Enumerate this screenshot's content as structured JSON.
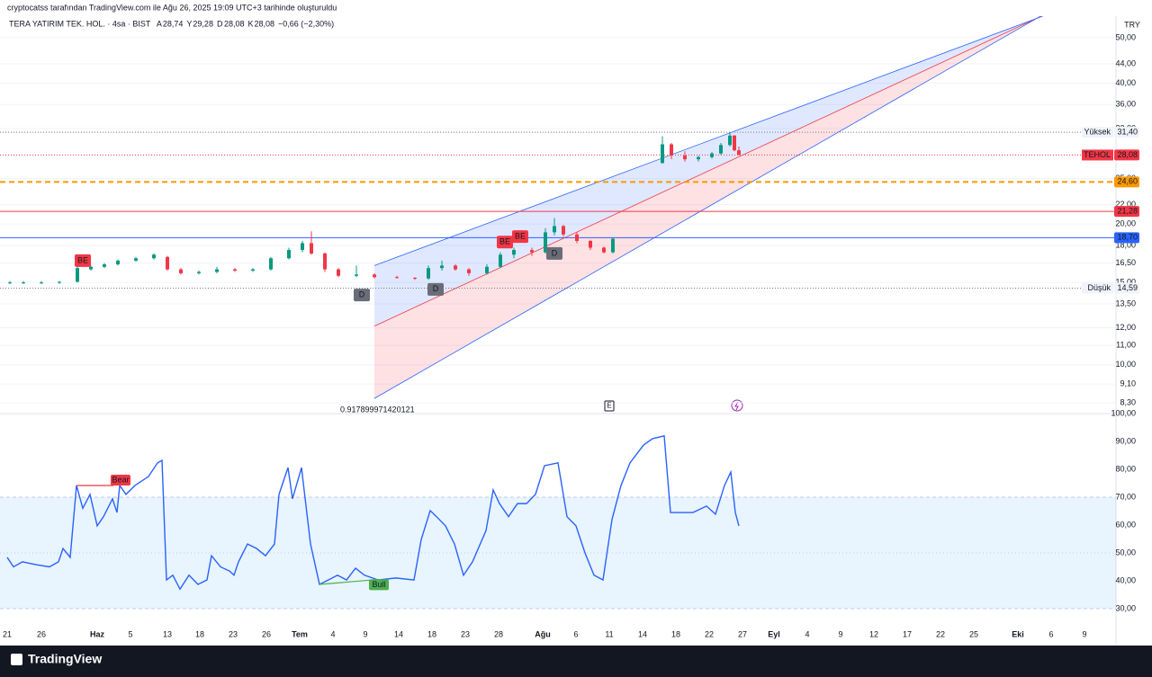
{
  "header": {
    "credit": "cryptocatss tarafından TradingView.com ile Ağu 26, 2025 19:09 UTC+3 tarihinde oluşturuldu",
    "symbol": "TERA YATIRIM TEK. HOL. · 4sa · BIST",
    "ohlc": [
      {
        "key": "A",
        "value": "28,74"
      },
      {
        "key": "Y",
        "value": "29,28"
      },
      {
        "key": "D",
        "value": "28,08"
      },
      {
        "key": "K",
        "value": "28,08"
      }
    ],
    "change": "−0,66 (−2,30%)"
  },
  "currency": "TRY",
  "footer": {
    "brand": "TradingView"
  },
  "chart_data": [
    {
      "type": "candlestick",
      "log_scale": true,
      "up_color": "#089981",
      "down_color": "#f23645",
      "xlim": [
        0,
        248
      ],
      "ylim": [
        7.87,
        55.6
      ],
      "yticks": [
        {
          "value": 50,
          "label": "50,00"
        },
        {
          "value": 44,
          "label": "44,00"
        },
        {
          "value": 40,
          "label": "40,00"
        },
        {
          "value": 36,
          "label": "36,00"
        },
        {
          "value": 32,
          "label": "32,00"
        },
        {
          "value": 25,
          "label": "25,00"
        },
        {
          "value": 22,
          "label": "22,00"
        },
        {
          "value": 20,
          "label": "20,00"
        },
        {
          "value": 18,
          "label": "18,00"
        },
        {
          "value": 16.5,
          "label": "16,50"
        },
        {
          "value": 15,
          "label": "15,00"
        },
        {
          "value": 13.5,
          "label": "13,50"
        },
        {
          "value": 12,
          "label": "12,00"
        },
        {
          "value": 11,
          "label": "11,00"
        },
        {
          "value": 10,
          "label": "10,00"
        },
        {
          "value": 9.1,
          "label": "9,10"
        },
        {
          "value": 8.3,
          "label": "8,30"
        }
      ],
      "x": [
        1,
        4,
        8,
        12,
        16,
        19,
        22,
        25,
        29,
        33,
        36,
        39,
        43,
        47,
        51,
        55,
        59,
        63,
        66,
        68,
        71,
        74,
        78,
        82,
        87,
        91,
        94,
        97,
        100,
        103,
        107,
        110,
        113,
        117,
        120,
        122,
        124,
        127,
        130,
        133,
        135,
        146,
        148,
        151,
        154,
        157,
        159,
        161,
        162,
        163
      ],
      "open": [
        15.0,
        15.0,
        15.0,
        15.0,
        15.05,
        16.0,
        16.2,
        16.4,
        16.7,
        16.9,
        17.0,
        16.0,
        15.7,
        15.8,
        16.0,
        15.9,
        16.0,
        16.9,
        17.6,
        18.2,
        17.3,
        16.0,
        15.5,
        15.6,
        15.4,
        15.35,
        15.3,
        16.1,
        16.3,
        16.0,
        15.7,
        16.2,
        17.2,
        17.6,
        17.4,
        19.2,
        19.8,
        19.0,
        18.4,
        17.8,
        17.4,
        27.0,
        29.6,
        28.0,
        27.5,
        27.8,
        28.3,
        29.5,
        30.9,
        28.74
      ],
      "high": [
        15.1,
        15.1,
        15.1,
        15.1,
        16.2,
        16.3,
        16.5,
        16.8,
        17.0,
        17.3,
        17.1,
        16.1,
        15.9,
        16.2,
        16.1,
        16.1,
        17.0,
        17.8,
        18.4,
        19.3,
        17.4,
        16.1,
        16.3,
        15.7,
        15.5,
        15.4,
        16.3,
        16.7,
        16.4,
        16.1,
        16.4,
        17.4,
        17.8,
        17.8,
        19.6,
        20.6,
        19.9,
        19.2,
        18.5,
        17.9,
        18.7,
        30.8,
        29.8,
        28.6,
        28.0,
        28.5,
        29.8,
        31.4,
        31.0,
        29.28
      ],
      "low": [
        14.9,
        14.9,
        14.9,
        14.9,
        15.0,
        15.9,
        16.1,
        16.3,
        16.6,
        16.8,
        15.9,
        15.6,
        15.6,
        15.7,
        15.8,
        15.8,
        15.9,
        16.8,
        17.4,
        17.2,
        15.8,
        15.4,
        15.4,
        15.3,
        15.3,
        15.2,
        15.2,
        15.9,
        15.9,
        15.5,
        15.6,
        16.1,
        16.9,
        17.1,
        17.3,
        18.9,
        18.8,
        18.2,
        17.6,
        17.3,
        17.3,
        26.9,
        27.5,
        27.2,
        27.2,
        27.6,
        28.1,
        29.3,
        28.6,
        28.08
      ],
      "close": [
        15.0,
        15.0,
        15.0,
        15.05,
        16.1,
        16.2,
        16.4,
        16.7,
        16.9,
        17.2,
        16.0,
        15.7,
        15.8,
        16.0,
        15.9,
        16.0,
        16.9,
        17.6,
        18.2,
        17.3,
        16.0,
        15.5,
        15.6,
        15.4,
        15.35,
        15.3,
        16.1,
        16.3,
        16.0,
        15.7,
        16.2,
        17.2,
        17.6,
        17.4,
        19.2,
        19.8,
        19.0,
        18.4,
        17.8,
        17.4,
        18.6,
        29.6,
        28.0,
        27.5,
        27.8,
        28.3,
        29.5,
        30.9,
        28.74,
        28.08
      ],
      "levels": [
        {
          "name": "Yüksek",
          "value": 31.4,
          "label": "31,40",
          "color": "#787b86",
          "style": "dotted"
        },
        {
          "name": "TEHOL",
          "value": 28.08,
          "label": "28,08",
          "color": "#f23645",
          "style": "dotted"
        },
        {
          "value": 24.6,
          "label": "24,60",
          "color": "#ff9800",
          "style": "dashed"
        },
        {
          "value": 21.28,
          "label": "21,28",
          "color": "#f23645",
          "style": "solid"
        },
        {
          "value": 18.7,
          "label": "18,70",
          "color": "#2962ff",
          "style": "solid"
        },
        {
          "name": "Düşük",
          "value": 14.59,
          "label": "14,59",
          "color": "#787b86",
          "style": "dotted"
        }
      ],
      "channel": {
        "upper": [
          {
            "x": 82,
            "y": 16.3
          },
          {
            "x": 232,
            "y": 56.3
          }
        ],
        "middle": [
          {
            "x": 82,
            "y": 12.1
          },
          {
            "x": 234,
            "y": 57.8
          }
        ],
        "lower": [
          {
            "x": 82,
            "y": 8.48
          },
          {
            "x": 231,
            "y": 56.3
          }
        ],
        "label": "0.917899971420121"
      },
      "markers": [
        {
          "label": "BE",
          "x": 17.2,
          "y": 16.7,
          "color": "#f23645"
        },
        {
          "label": "BE",
          "x": 111,
          "y": 18.3,
          "color": "#f23645"
        },
        {
          "label": "BE",
          "x": 114.4,
          "y": 18.8,
          "color": "#f23645"
        },
        {
          "label": "D",
          "x": 79.2,
          "y": 14.1,
          "color": "#6a6d78"
        },
        {
          "label": "D",
          "x": 95.6,
          "y": 14.5,
          "color": "#6a6d78"
        },
        {
          "label": "D",
          "x": 122,
          "y": 17.3,
          "color": "#6a6d78"
        }
      ],
      "event": {
        "label": "E",
        "x": 134.2
      }
    },
    {
      "type": "line",
      "xlim": [
        0,
        248
      ],
      "ylim": [
        25.8,
        100
      ],
      "band": [
        30,
        70
      ],
      "midline": 50,
      "yticks": [
        {
          "value": 100,
          "label": "100,00"
        },
        {
          "value": 90,
          "label": "90,00"
        },
        {
          "value": 80,
          "label": "80,00"
        },
        {
          "value": 70,
          "label": "70,00"
        },
        {
          "value": 60,
          "label": "60,00"
        },
        {
          "value": 50,
          "label": "50,00"
        },
        {
          "value": 40,
          "label": "40,00"
        },
        {
          "value": 30,
          "label": "30,00"
        }
      ],
      "xticks": [
        {
          "value": 0.4,
          "label": "21"
        },
        {
          "value": 8,
          "label": "26"
        },
        {
          "value": 20.4,
          "label": "Haz"
        },
        {
          "value": 27.8,
          "label": "5"
        },
        {
          "value": 36,
          "label": "13"
        },
        {
          "value": 43.2,
          "label": "18"
        },
        {
          "value": 50.6,
          "label": "23"
        },
        {
          "value": 58,
          "label": "26"
        },
        {
          "value": 65.4,
          "label": "Tem"
        },
        {
          "value": 72.8,
          "label": "4"
        },
        {
          "value": 80,
          "label": "9"
        },
        {
          "value": 87.4,
          "label": "14"
        },
        {
          "value": 94.8,
          "label": "18"
        },
        {
          "value": 102.2,
          "label": "23"
        },
        {
          "value": 109.6,
          "label": "28"
        },
        {
          "value": 119.4,
          "label": "Ağu"
        },
        {
          "value": 126.8,
          "label": "6"
        },
        {
          "value": 134.2,
          "label": "11"
        },
        {
          "value": 141.6,
          "label": "14"
        },
        {
          "value": 149,
          "label": "18"
        },
        {
          "value": 156.4,
          "label": "22"
        },
        {
          "value": 163.8,
          "label": "27"
        },
        {
          "value": 170.8,
          "label": "Eyl"
        },
        {
          "value": 178.2,
          "label": "4"
        },
        {
          "value": 185.6,
          "label": "9"
        },
        {
          "value": 193,
          "label": "12"
        },
        {
          "value": 200.4,
          "label": "17"
        },
        {
          "value": 207.8,
          "label": "22"
        },
        {
          "value": 215.2,
          "label": "25"
        },
        {
          "value": 225,
          "label": "Eki"
        },
        {
          "value": 232.4,
          "label": "6"
        },
        {
          "value": 239.8,
          "label": "9"
        }
      ],
      "x": [
        0.4,
        1.8,
        3.8,
        6.8,
        9.8,
        11.8,
        12.8,
        14.4,
        15.8,
        17.2,
        18.8,
        20.4,
        21.8,
        23.8,
        24.8,
        25.4,
        26.8,
        28.8,
        31.8,
        33.8,
        34.8,
        35.8,
        37.2,
        38.8,
        40.8,
        42.8,
        44.8,
        45.8,
        47.8,
        49.8,
        50.8,
        51.8,
        53.8,
        55.8,
        57.8,
        59.8,
        60.8,
        62.8,
        63.8,
        65.8,
        67.8,
        69.8,
        71.8,
        73.8,
        75.8,
        77.8,
        79.8,
        82.8,
        86.8,
        90.8,
        92.4,
        94.4,
        95.8,
        97.8,
        99.8,
        101.8,
        103.8,
        106.8,
        108.4,
        109.8,
        111.8,
        113.8,
        115.8,
        117.8,
        119.8,
        122.8,
        124.8,
        126.8,
        128.8,
        130.8,
        132.8,
        134.8,
        136.8,
        138.8,
        141.8,
        143.8,
        146.4,
        147.8,
        149.8,
        152.8,
        155.8,
        157.8,
        159.8,
        161.2,
        162.2,
        163
      ],
      "series": [
        {
          "color": "#2962ff",
          "values": [
            48.4,
            45,
            46.8,
            45.8,
            45,
            46.8,
            51.6,
            48.4,
            74.2,
            66,
            71,
            59.7,
            63,
            69.4,
            64.5,
            74.2,
            71,
            74.2,
            77.4,
            82.3,
            83.2,
            40.3,
            42,
            37,
            42,
            38.7,
            40.3,
            49,
            45,
            43.5,
            42,
            46.8,
            53.2,
            51.6,
            49,
            53.2,
            71,
            80.6,
            69.4,
            80.6,
            53.2,
            38.7,
            40.3,
            42,
            40.3,
            44.5,
            42,
            40.3,
            41,
            40.3,
            54.8,
            65.2,
            63,
            59.7,
            53.2,
            42,
            46.8,
            58,
            72.6,
            67.7,
            63,
            67.7,
            67.7,
            71,
            81.3,
            82.3,
            63,
            59.7,
            50,
            42,
            40.3,
            62,
            74.2,
            82.3,
            88.7,
            91,
            92,
            64.5,
            64.5,
            64.5,
            66.8,
            63.9,
            74.2,
            79,
            64.5,
            59.7
          ]
        }
      ],
      "divergences": [
        {
          "label": "Bear",
          "x": [
            15.8,
            24
          ],
          "y": [
            74.2,
            74.2
          ],
          "color": "#f23645"
        },
        {
          "label": "Bull",
          "x": [
            69.8,
            83
          ],
          "y": [
            38.7,
            40.5
          ],
          "color": "#4caf50"
        }
      ]
    }
  ]
}
